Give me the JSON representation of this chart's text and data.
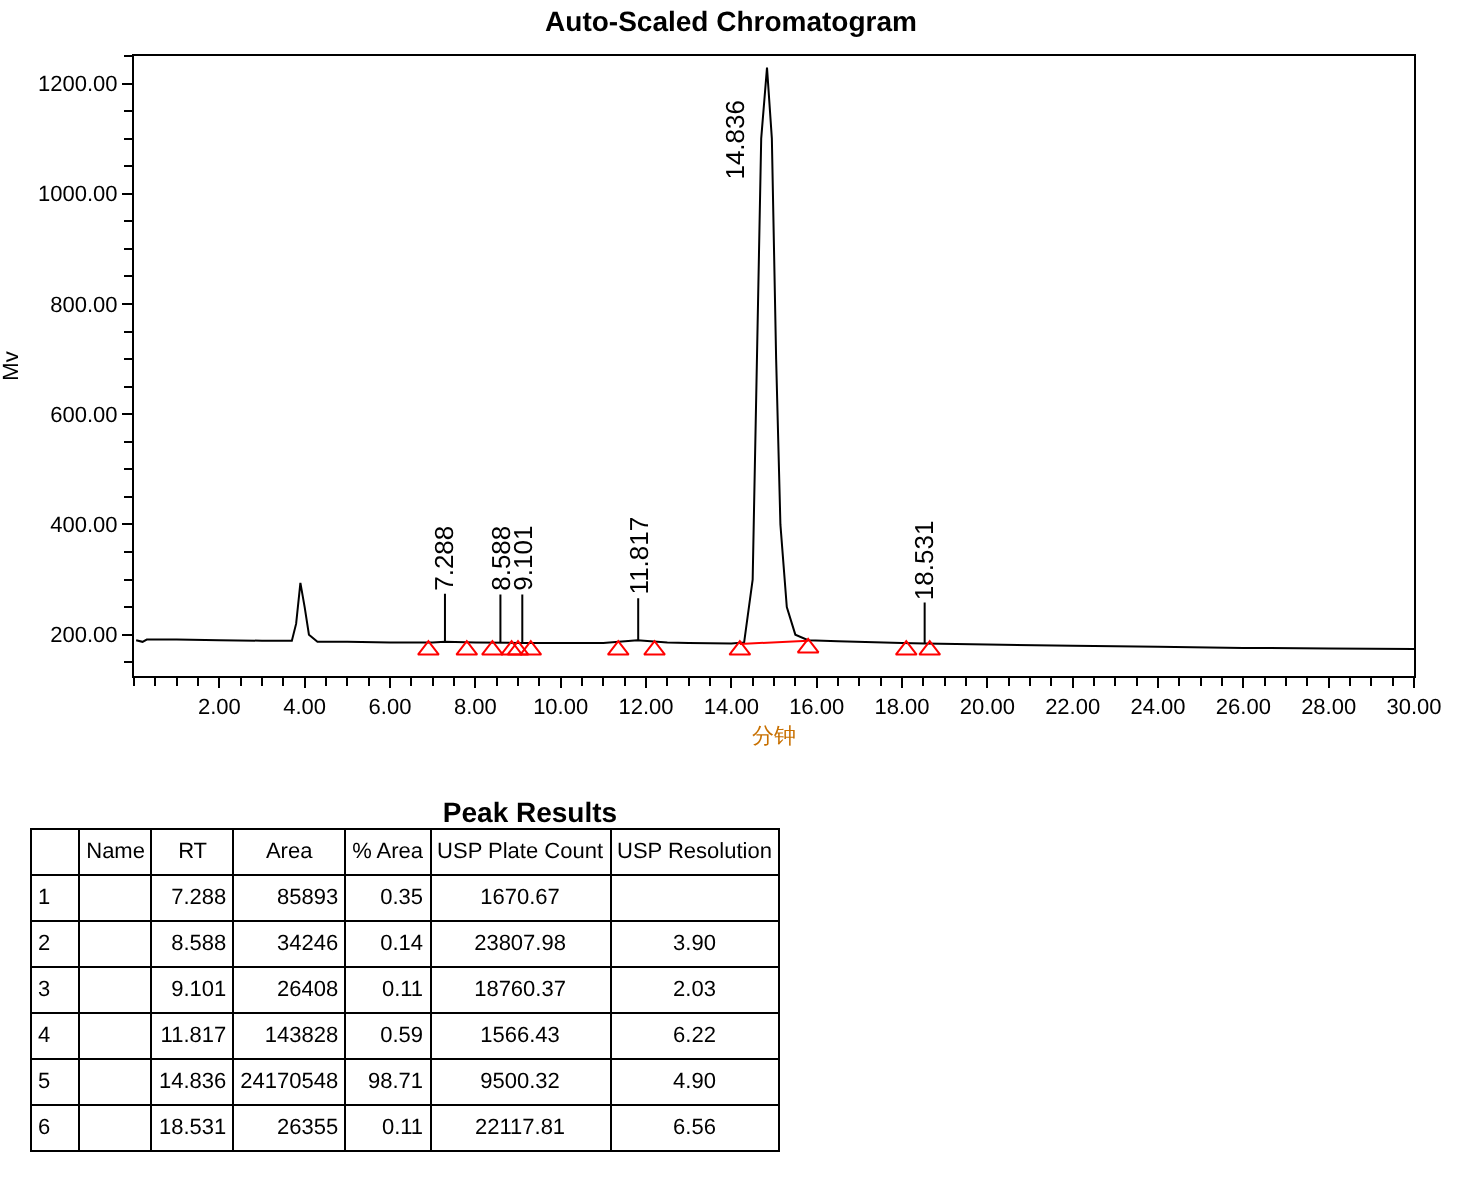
{
  "chart_data": [
    {
      "type": "line",
      "title": "Auto-Scaled Chromatogram",
      "xlabel": "分钟",
      "ylabel": "Mv",
      "xlim": [
        0,
        30
      ],
      "xticks": [
        {
          "value": 2,
          "label": "2.00"
        },
        {
          "value": 4,
          "label": "4.00"
        },
        {
          "value": 6,
          "label": "6.00"
        },
        {
          "value": 8,
          "label": "8.00"
        },
        {
          "value": 10,
          "label": "10.00"
        },
        {
          "value": 12,
          "label": "12.00"
        },
        {
          "value": 14,
          "label": "14.00"
        },
        {
          "value": 16,
          "label": "16.00"
        },
        {
          "value": 18,
          "label": "18.00"
        },
        {
          "value": 20,
          "label": "20.00"
        },
        {
          "value": 22,
          "label": "22.00"
        },
        {
          "value": 24,
          "label": "24.00"
        },
        {
          "value": 26,
          "label": "26.00"
        },
        {
          "value": 28,
          "label": "28.00"
        },
        {
          "value": 30,
          "label": "30.00"
        }
      ],
      "ylim": [
        125,
        1250
      ],
      "yticks": [
        {
          "value": 200,
          "label": "200.00"
        },
        {
          "value": 400,
          "label": "400.00"
        },
        {
          "value": 600,
          "label": "600.00"
        },
        {
          "value": 800,
          "label": "800.00"
        },
        {
          "value": 1000,
          "label": "1000.00"
        },
        {
          "value": 1200,
          "label": "1200.00"
        }
      ],
      "grid": false,
      "series": [
        {
          "type": "line",
          "color": "#000000",
          "marker": "none",
          "x": [
            0.05,
            0.2,
            0.3,
            1,
            2,
            3,
            3.7,
            3.8,
            3.9,
            4.0,
            4.1,
            4.3,
            5,
            6,
            7,
            7.288,
            8,
            9,
            10,
            11,
            11.8,
            12.5,
            13,
            14,
            14.3,
            14.5,
            14.6,
            14.7,
            14.836,
            14.95,
            15.05,
            15.15,
            15.3,
            15.5,
            15.8,
            16.5,
            18,
            18.531,
            20,
            22,
            24,
            26,
            28,
            30
          ],
          "values": [
            190,
            187,
            191,
            191,
            190,
            189,
            189,
            220,
            294,
            250,
            200,
            187,
            187,
            186,
            186,
            187,
            186,
            185,
            185,
            185,
            190,
            186,
            185,
            184,
            186,
            300,
            700,
            1100,
            1229,
            1100,
            700,
            400,
            250,
            200,
            190,
            188,
            185,
            184,
            182,
            180,
            178,
            176,
            175,
            174
          ]
        },
        {
          "type": "line",
          "color": "#ff0000",
          "marker": "none",
          "x": [
            14.2,
            15.8
          ],
          "values": [
            183,
            189
          ]
        },
        {
          "type": "scatter",
          "color": "#ff0000",
          "marker": "triangle",
          "x": [
            6.9,
            7.8,
            8.4,
            8.85,
            9.0,
            9.3,
            11.35,
            12.2,
            14.2,
            15.8,
            18.1,
            18.65
          ],
          "values": [
            172,
            172,
            172,
            172,
            172,
            172,
            172,
            172,
            172,
            176,
            172,
            172
          ]
        }
      ],
      "annotations": [
        {
          "text": "7.288",
          "x": 7.288,
          "y": 187
        },
        {
          "text": "8.588",
          "x": 8.588,
          "y": 186
        },
        {
          "text": "9.101",
          "x": 9.101,
          "y": 186
        },
        {
          "text": "11.817",
          "x": 11.817,
          "y": 190
        },
        {
          "text": "14.836",
          "x": 14.836,
          "y": 1229
        },
        {
          "text": "18.531",
          "x": 18.531,
          "y": 184
        }
      ]
    },
    {
      "type": "heatmap",
      "title": "Peak Results",
      "categories": [
        "Name",
        "RT",
        "Area",
        "% Area",
        "USP Plate Count",
        "USP Resolution"
      ],
      "y_categories": [
        "1",
        "2",
        "3",
        "4",
        "5",
        "6"
      ],
      "cells": [
        [
          null,
          7.288,
          85893,
          0.35,
          1670.67,
          null
        ],
        [
          null,
          8.588,
          34246,
          0.14,
          23807.98,
          3.9
        ],
        [
          null,
          9.101,
          26408,
          0.11,
          18760.37,
          2.03
        ],
        [
          null,
          11.817,
          143828,
          0.59,
          1566.43,
          6.22
        ],
        [
          null,
          14.836,
          24170548,
          98.71,
          9500.32,
          4.9
        ],
        [
          null,
          18.531,
          26355,
          0.11,
          22117.81,
          6.56
        ]
      ],
      "cell_labels": [
        [
          null,
          "7.288",
          "85893",
          "0.35",
          "1670.67",
          null
        ],
        [
          null,
          "8.588",
          "34246",
          "0.14",
          "23807.98",
          "3.90"
        ],
        [
          null,
          "9.101",
          "26408",
          "0.11",
          "18760.37",
          "2.03"
        ],
        [
          null,
          "11.817",
          "143828",
          "0.59",
          "1566.43",
          "6.22"
        ],
        [
          null,
          "14.836",
          "24170548",
          "98.71",
          "9500.32",
          "4.90"
        ],
        [
          null,
          "18.531",
          "26355",
          "0.11",
          "22117.81",
          "6.56"
        ]
      ]
    }
  ]
}
